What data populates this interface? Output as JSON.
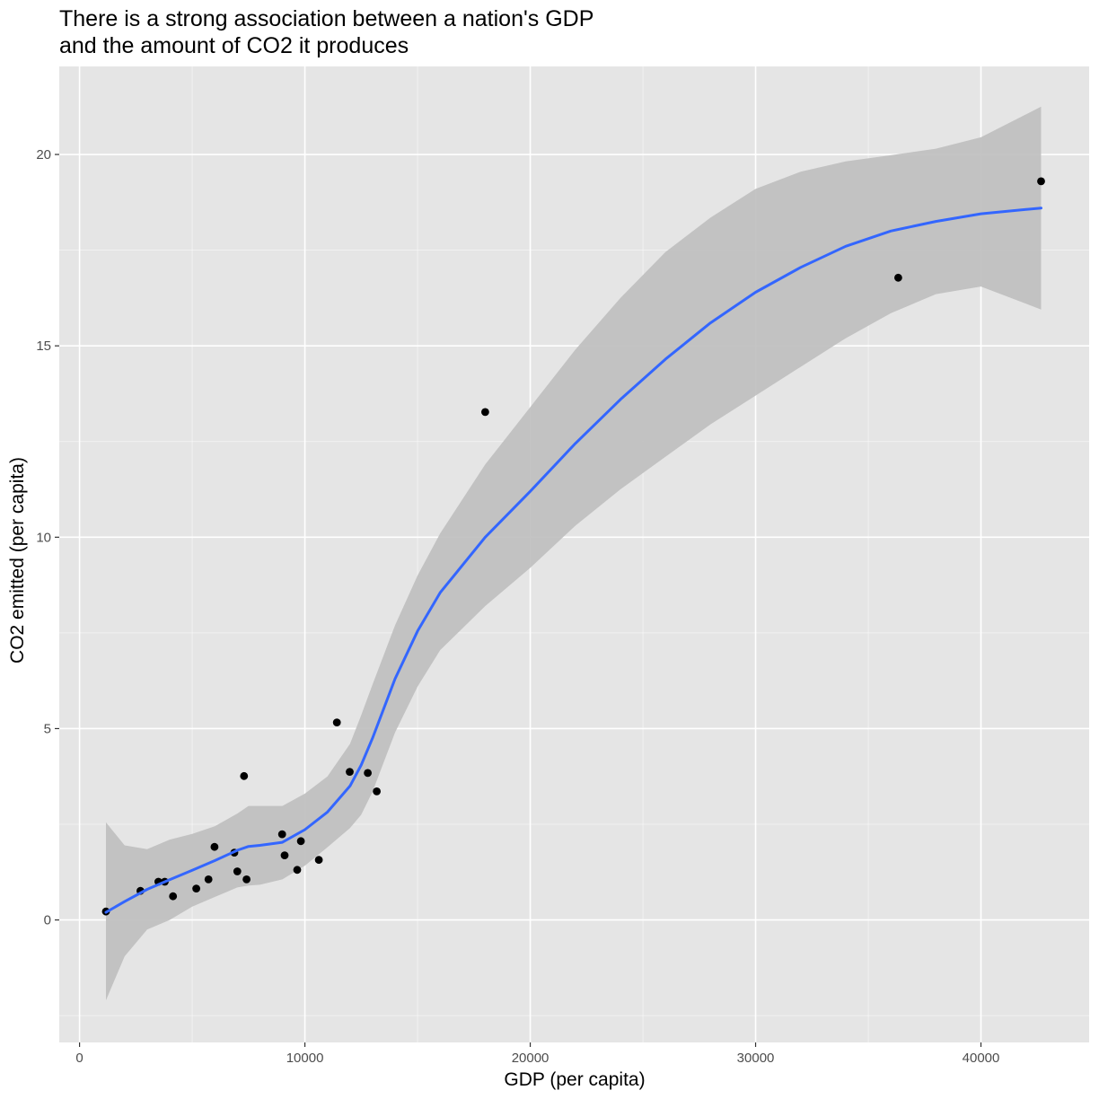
{
  "chart_data": {
    "type": "scatter",
    "title_lines": [
      "There is a strong association between a nation's GDP",
      "and the amount of CO2 it produces"
    ],
    "xlabel": "GDP (per capita)",
    "ylabel": "CO2 emitted (per capita)",
    "xlim": [
      -900,
      44800
    ],
    "ylim": [
      -3.2,
      22.3
    ],
    "x_ticks": [
      {
        "value": 0,
        "label": "0"
      },
      {
        "value": 10000,
        "label": "10000"
      },
      {
        "value": 20000,
        "label": "20000"
      },
      {
        "value": 30000,
        "label": "30000"
      },
      {
        "value": 40000,
        "label": "40000"
      }
    ],
    "y_ticks": [
      {
        "value": 0,
        "label": "0"
      },
      {
        "value": 5,
        "label": "5"
      },
      {
        "value": 10,
        "label": "10"
      },
      {
        "value": 15,
        "label": "15"
      },
      {
        "value": 20,
        "label": "20"
      }
    ],
    "x_minor": [
      -5000,
      5000,
      15000,
      25000,
      35000
    ],
    "y_minor": [
      -2.5,
      2.5,
      7.5,
      12.5,
      17.5
    ],
    "grid": true,
    "points": [
      {
        "x": 1170,
        "y": 0.22
      },
      {
        "x": 2700,
        "y": 0.76
      },
      {
        "x": 3500,
        "y": 1.0
      },
      {
        "x": 3780,
        "y": 1.0
      },
      {
        "x": 4150,
        "y": 0.62
      },
      {
        "x": 5180,
        "y": 0.82
      },
      {
        "x": 5720,
        "y": 1.06
      },
      {
        "x": 5990,
        "y": 1.91
      },
      {
        "x": 6870,
        "y": 1.76
      },
      {
        "x": 7000,
        "y": 1.27
      },
      {
        "x": 7300,
        "y": 3.76
      },
      {
        "x": 7410,
        "y": 1.06
      },
      {
        "x": 8990,
        "y": 2.24
      },
      {
        "x": 9100,
        "y": 1.69
      },
      {
        "x": 9660,
        "y": 1.31
      },
      {
        "x": 9820,
        "y": 2.06
      },
      {
        "x": 10620,
        "y": 1.57
      },
      {
        "x": 11420,
        "y": 5.16
      },
      {
        "x": 11990,
        "y": 3.87
      },
      {
        "x": 12790,
        "y": 3.84
      },
      {
        "x": 13190,
        "y": 3.36
      },
      {
        "x": 18000,
        "y": 13.27
      },
      {
        "x": 36330,
        "y": 16.78
      },
      {
        "x": 42670,
        "y": 19.3
      }
    ],
    "smooth": {
      "x": [
        1170,
        2000,
        3000,
        4000,
        5000,
        6000,
        7000,
        7500,
        8000,
        9000,
        10000,
        11000,
        12000,
        12500,
        13000,
        14000,
        15000,
        16000,
        18000,
        20000,
        22000,
        24000,
        26000,
        28000,
        30000,
        32000,
        34000,
        36000,
        38000,
        40000,
        42670
      ],
      "y": [
        0.2,
        0.48,
        0.8,
        1.05,
        1.3,
        1.55,
        1.82,
        1.92,
        1.95,
        2.03,
        2.36,
        2.82,
        3.5,
        4.05,
        4.75,
        6.3,
        7.55,
        8.55,
        10.0,
        11.2,
        12.45,
        13.6,
        14.65,
        15.6,
        16.4,
        17.05,
        17.6,
        18.0,
        18.25,
        18.45,
        18.6
      ],
      "upper": [
        2.55,
        1.95,
        1.85,
        2.1,
        2.25,
        2.45,
        2.78,
        2.98,
        2.98,
        2.98,
        3.3,
        3.75,
        4.6,
        5.35,
        6.15,
        7.7,
        9.0,
        10.1,
        11.9,
        13.4,
        14.9,
        16.25,
        17.45,
        18.35,
        19.1,
        19.55,
        19.82,
        19.98,
        20.15,
        20.45,
        21.25
      ],
      "lower": [
        -2.1,
        -0.95,
        -0.25,
        0.0,
        0.35,
        0.6,
        0.85,
        0.9,
        0.92,
        1.06,
        1.42,
        1.9,
        2.4,
        2.75,
        3.35,
        4.9,
        6.1,
        7.05,
        8.2,
        9.2,
        10.3,
        11.25,
        12.1,
        12.95,
        13.7,
        14.45,
        15.2,
        15.85,
        16.35,
        16.55,
        15.95
      ]
    },
    "colors": {
      "panel": "#e5e5e5",
      "grid_major": "#ffffff",
      "point": "#000000",
      "line": "#3366ff",
      "band": "#bebebe"
    }
  }
}
